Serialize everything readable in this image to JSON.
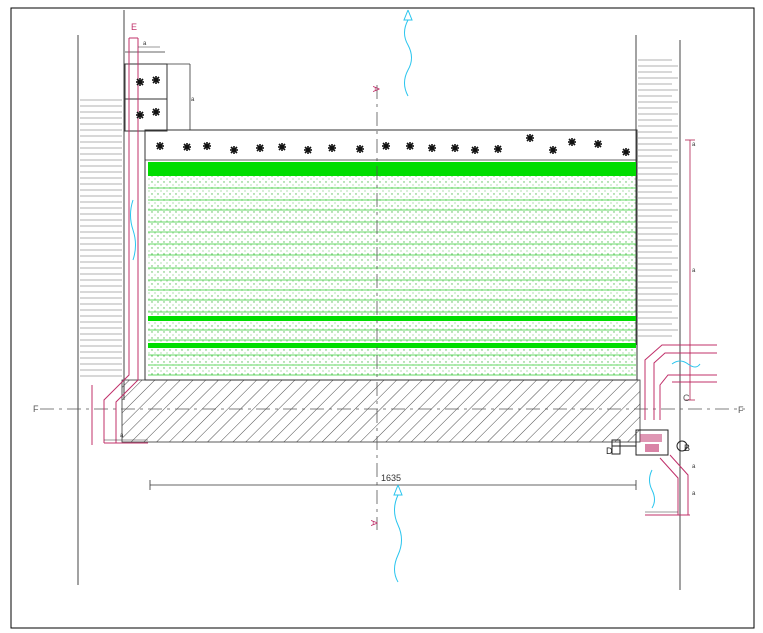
{
  "drawing": {
    "dimension_main": "1635",
    "section_labels": {
      "a_top": "A",
      "a_bottom": "A",
      "f_left": "F",
      "f_right": "F",
      "c_right": "C",
      "e_top": "E",
      "d_left": "D",
      "b_right": "B"
    },
    "dim_small": {
      "d1": "a",
      "d2": "a",
      "d3": "a",
      "d4": "a",
      "d5": "a",
      "d6": "a",
      "d7": "a"
    },
    "colors": {
      "frame": "#000000",
      "wall": "#444444",
      "pipe": "#c0306a",
      "fill_band": "#00dd00",
      "fill_line": "#33cc33",
      "hatch": "#3a3a3a",
      "water": "#29c5ee",
      "axis": "#b02050"
    },
    "icons": {
      "plant_marker": "star-icon",
      "water_flow": "wave-arrow-icon"
    }
  }
}
